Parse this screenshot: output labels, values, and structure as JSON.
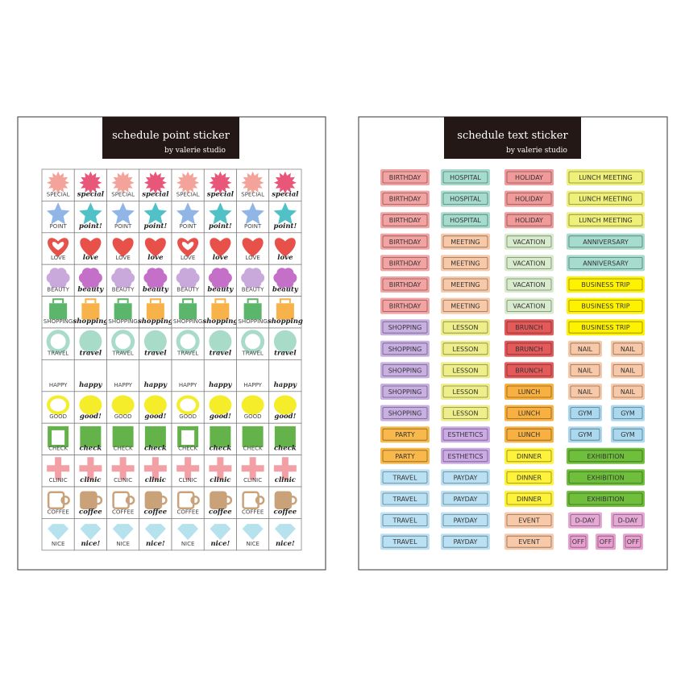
{
  "left": {
    "title": "schedule point sticker",
    "subtitle": "by valerie studio",
    "rows": [
      {
        "upper": "SPECIAL",
        "lower": "special",
        "shape": "burst",
        "colors": [
          "#f4a39a",
          "#e8577a"
        ]
      },
      {
        "upper": "POINT",
        "lower": "point!",
        "shape": "star",
        "colors": [
          "#8fb6e6",
          "#4fc1c7"
        ]
      },
      {
        "upper": "LOVE",
        "lower": "love",
        "shape": "heart",
        "colors": [
          "#e8504a",
          "#e8504a"
        ]
      },
      {
        "upper": "BEAUTY",
        "lower": "beauty",
        "shape": "flower",
        "colors": [
          "#c9a9dc",
          "#c46fc8"
        ]
      },
      {
        "upper": "SHOPPING",
        "lower": "shopping",
        "shape": "bag",
        "colors": [
          "#5bb56a",
          "#f7b24a"
        ]
      },
      {
        "upper": "TRAVEL",
        "lower": "travel",
        "shape": "ring",
        "colors": [
          "#a9dcc8",
          "#a9dcc8"
        ]
      },
      {
        "upper": "HAPPY",
        "lower": "happy",
        "shape": "bow",
        "colors": [
          "#f6b8d2",
          "#f29bc0"
        ]
      },
      {
        "upper": "GOOD",
        "lower": "good!",
        "shape": "lemon",
        "colors": [
          "#f5ec2a",
          "#f5ec2a"
        ]
      },
      {
        "upper": "CHECK",
        "lower": "check",
        "shape": "square",
        "colors": [
          "#64b24a",
          "#64b24a"
        ]
      },
      {
        "upper": "CLINIC",
        "lower": "clinic",
        "shape": "cross",
        "colors": [
          "#f2a0a6",
          "#f2a0a6"
        ]
      },
      {
        "upper": "COFFEE",
        "lower": "coffee",
        "shape": "cup",
        "colors": [
          "#c9a27a",
          "#c9a27a"
        ]
      },
      {
        "upper": "NICE",
        "lower": "nice!",
        "shape": "gem",
        "colors": [
          "#b6e2ee",
          "#b6e2ee"
        ]
      }
    ]
  },
  "right": {
    "title": "schedule text sticker",
    "subtitle": "by valerie studio",
    "columns": [
      [
        {
          "text": "BIRTHDAY",
          "color": "#f4a3a3"
        },
        {
          "text": "BIRTHDAY",
          "color": "#f4a3a3"
        },
        {
          "text": "BIRTHDAY",
          "color": "#f4a3a3"
        },
        {
          "text": "BIRTHDAY",
          "color": "#f4a3a3"
        },
        {
          "text": "BIRTHDAY",
          "color": "#f4a3a3"
        },
        {
          "text": "BIRTHDAY",
          "color": "#f4a3a3"
        },
        {
          "text": "BIRTHDAY",
          "color": "#f4a3a3"
        },
        {
          "text": "SHOPPING",
          "color": "#c9b0e2"
        },
        {
          "text": "SHOPPING",
          "color": "#c9b0e2"
        },
        {
          "text": "SHOPPING",
          "color": "#c9b0e2"
        },
        {
          "text": "SHOPPING",
          "color": "#c9b0e2"
        },
        {
          "text": "SHOPPING",
          "color": "#c9b0e2"
        },
        {
          "text": "PARTY",
          "color": "#f8b94a"
        },
        {
          "text": "PARTY",
          "color": "#f8b94a"
        },
        {
          "text": "TRAVEL",
          "color": "#bae0f3"
        },
        {
          "text": "TRAVEL",
          "color": "#bae0f3"
        },
        {
          "text": "TRAVEL",
          "color": "#bae0f3"
        },
        {
          "text": "TRAVEL",
          "color": "#bae0f3"
        }
      ],
      [
        {
          "text": "HOSPITAL",
          "color": "#a6dccd"
        },
        {
          "text": "HOSPITAL",
          "color": "#a6dccd"
        },
        {
          "text": "HOSPITAL",
          "color": "#a6dccd"
        },
        {
          "text": "MEETING",
          "color": "#f8c9a8"
        },
        {
          "text": "MEETING",
          "color": "#f8c9a8"
        },
        {
          "text": "MEETING",
          "color": "#f8c9a8"
        },
        {
          "text": "MEETING",
          "color": "#f8c9a8"
        },
        {
          "text": "LESSON",
          "color": "#eeee8a"
        },
        {
          "text": "LESSON",
          "color": "#eeee8a"
        },
        {
          "text": "LESSON",
          "color": "#eeee8a"
        },
        {
          "text": "LESSON",
          "color": "#eeee8a"
        },
        {
          "text": "LESSON",
          "color": "#eeee8a"
        },
        {
          "text": "ESTHETICS",
          "color": "#cbaae6"
        },
        {
          "text": "ESTHETICS",
          "color": "#cbaae6"
        },
        {
          "text": "PAYDAY",
          "color": "#bae0f3"
        },
        {
          "text": "PAYDAY",
          "color": "#bae0f3"
        },
        {
          "text": "PAYDAY",
          "color": "#bae0f3"
        },
        {
          "text": "PAYDAY",
          "color": "#bae0f3"
        }
      ],
      [
        {
          "text": "HOLIDAY",
          "color": "#f19a9a"
        },
        {
          "text": "HOLIDAY",
          "color": "#f19a9a"
        },
        {
          "text": "HOLIDAY",
          "color": "#f19a9a"
        },
        {
          "text": "VACATION",
          "color": "#d8eccd"
        },
        {
          "text": "VACATION",
          "color": "#d8eccd"
        },
        {
          "text": "VACATION",
          "color": "#d8eccd"
        },
        {
          "text": "VACATION",
          "color": "#d8eccd"
        },
        {
          "text": "BRUNCH",
          "color": "#e45a5a"
        },
        {
          "text": "BRUNCH",
          "color": "#e45a5a"
        },
        {
          "text": "BRUNCH",
          "color": "#e45a5a"
        },
        {
          "text": "LUNCH",
          "color": "#f8b040"
        },
        {
          "text": "LUNCH",
          "color": "#f8b040"
        },
        {
          "text": "LUNCH",
          "color": "#f8b040"
        },
        {
          "text": "DINNER",
          "color": "#fff23a"
        },
        {
          "text": "DINNER",
          "color": "#fff23a"
        },
        {
          "text": "DINNER",
          "color": "#fff23a"
        },
        {
          "text": "EVENT",
          "color": "#f8c9a8"
        },
        {
          "text": "EVENT",
          "color": "#f8c9a8"
        }
      ]
    ],
    "column4": [
      {
        "labels": [
          "LUNCH MEETING"
        ],
        "color": "#eef07a"
      },
      {
        "labels": [
          "LUNCH MEETING"
        ],
        "color": "#eef07a"
      },
      {
        "labels": [
          "LUNCH MEETING"
        ],
        "color": "#eef07a"
      },
      {
        "labels": [
          "ANNIVERSARY"
        ],
        "color": "#a6dccd"
      },
      {
        "labels": [
          "ANNIVERSARY"
        ],
        "color": "#a6dccd"
      },
      {
        "labels": [
          "BUSINESS TRIP"
        ],
        "color": "#fff200"
      },
      {
        "labels": [
          "BUSINESS TRIP"
        ],
        "color": "#fff200"
      },
      {
        "labels": [
          "BUSINESS TRIP"
        ],
        "color": "#fff200"
      },
      {
        "labels": [
          "NAIL",
          "NAIL"
        ],
        "color": "#f8c9a8"
      },
      {
        "labels": [
          "NAIL",
          "NAIL"
        ],
        "color": "#f8c9a8"
      },
      {
        "labels": [
          "NAIL",
          "NAIL"
        ],
        "color": "#f8c9a8"
      },
      {
        "labels": [
          "GYM",
          "GYM"
        ],
        "color": "#a9d8ef"
      },
      {
        "labels": [
          "GYM",
          "GYM"
        ],
        "color": "#a9d8ef"
      },
      {
        "labels": [
          "EXHIBITION"
        ],
        "color": "#6fbf3c"
      },
      {
        "labels": [
          "EXHIBITION"
        ],
        "color": "#6fbf3c"
      },
      {
        "labels": [
          "EXHIBITION"
        ],
        "color": "#6fbf3c"
      },
      {
        "labels": [
          "D-DAY",
          "D-DAY"
        ],
        "color": "#e6a9d6"
      },
      {
        "labels": [
          "OFF",
          "OFF",
          "OFF"
        ],
        "color": "#e8a0d0"
      }
    ]
  }
}
